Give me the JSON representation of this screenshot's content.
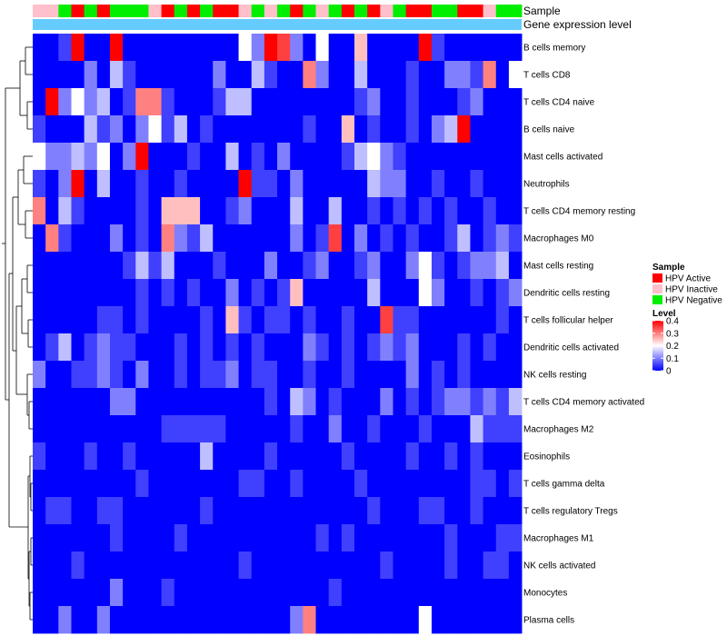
{
  "chart_data": {
    "type": "heatmap",
    "annotation_labels": {
      "top": "Sample",
      "bottom": "Gene expression level"
    },
    "rows": [
      "B cells memory",
      "T cells CD8",
      "T cells CD4 naive",
      "B cells naive",
      "Mast cells activated",
      "Neutrophils",
      "T cells CD4 memory resting",
      "Macrophages M0",
      "Mast cells resting",
      "Dendritic cells resting",
      "T cells follicular helper",
      "Dendritic cells activated",
      "NK cells resting",
      "T cells CD4 memory activated",
      "Macrophages M2",
      "Eosinophils",
      "T cells gamma delta",
      "T cells regulatory  Tregs",
      "Macrophages M1",
      "NK cells activated",
      "Monocytes",
      "Plasma cells"
    ],
    "sample_groups": [
      "HPV Inactive",
      "HPV Inactive",
      "HPV Negative",
      "HPV Active",
      "HPV Negative",
      "HPV Active",
      "HPV Negative",
      "HPV Negative",
      "HPV Negative",
      "HPV Inactive",
      "HPV Active",
      "HPV Negative",
      "HPV Active",
      "HPV Negative",
      "HPV Active",
      "HPV Active",
      "HPV Inactive",
      "HPV Negative",
      "HPV Inactive",
      "HPV Negative",
      "HPV Active",
      "HPV Negative",
      "HPV Inactive",
      "HPV Negative",
      "HPV Active",
      "HPV Negative",
      "HPV Active",
      "HPV Inactive",
      "HPV Negative",
      "HPV Active",
      "HPV Active",
      "HPV Negative",
      "HPV Negative",
      "HPV Active",
      "HPV Active",
      "HPV Inactive",
      "HPV Negative",
      "HPV Negative"
    ],
    "values": [
      [
        0.0,
        0.0,
        0.05,
        0.4,
        0.0,
        0.0,
        0.4,
        0.0,
        0.0,
        0.0,
        0.0,
        0.0,
        0.0,
        0.0,
        0.0,
        0.0,
        0.2,
        0.1,
        0.4,
        0.35,
        0.1,
        0.0,
        0.2,
        0.0,
        0.0,
        0.25,
        0.0,
        0.0,
        0.0,
        0.0,
        0.4,
        0.05,
        0.0,
        0.0,
        0.0,
        0.0,
        0.0,
        0.0
      ],
      [
        0.0,
        0.0,
        0.0,
        0.0,
        0.1,
        0.0,
        0.15,
        0.05,
        0.0,
        0.0,
        0.0,
        0.0,
        0.0,
        0.0,
        0.1,
        0.0,
        0.0,
        0.15,
        0.05,
        0.0,
        0.0,
        0.3,
        0.1,
        0.0,
        0.0,
        0.15,
        0.0,
        0.0,
        0.0,
        0.05,
        0.0,
        0.0,
        0.1,
        0.1,
        0.05,
        0.3,
        0.0,
        0.2
      ],
      [
        0.0,
        0.4,
        0.1,
        0.2,
        0.1,
        0.15,
        0.0,
        0.05,
        0.3,
        0.3,
        0.05,
        0.0,
        0.0,
        0.0,
        0.05,
        0.15,
        0.15,
        0.0,
        0.0,
        0.0,
        0.0,
        0.0,
        0.0,
        0.0,
        0.0,
        0.05,
        0.1,
        0.0,
        0.0,
        0.05,
        0.0,
        0.0,
        0.0,
        0.05,
        0.1,
        0.0,
        0.0,
        0.0
      ],
      [
        0.05,
        0.0,
        0.0,
        0.0,
        0.15,
        0.05,
        0.1,
        0.0,
        0.1,
        0.2,
        0.05,
        0.15,
        0.0,
        0.05,
        0.0,
        0.0,
        0.0,
        0.0,
        0.0,
        0.0,
        0.0,
        0.05,
        0.0,
        0.0,
        0.25,
        0.0,
        0.05,
        0.0,
        0.0,
        0.05,
        0.0,
        0.1,
        0.15,
        0.4,
        0.0,
        0.0,
        0.0,
        0.0
      ],
      [
        0.2,
        0.1,
        0.1,
        0.15,
        0.1,
        0.2,
        0.0,
        0.1,
        0.4,
        0.0,
        0.0,
        0.0,
        0.05,
        0.0,
        0.0,
        0.15,
        0.0,
        0.05,
        0.0,
        0.1,
        0.0,
        0.0,
        0.0,
        0.0,
        0.05,
        0.15,
        0.2,
        0.1,
        0.05,
        0.0,
        0.0,
        0.0,
        0.0,
        0.0,
        0.0,
        0.0,
        0.0,
        0.0
      ],
      [
        0.05,
        0.0,
        0.1,
        0.4,
        0.0,
        0.15,
        0.0,
        0.0,
        0.05,
        0.0,
        0.0,
        0.05,
        0.0,
        0.0,
        0.0,
        0.0,
        0.4,
        0.05,
        0.05,
        0.0,
        0.1,
        0.0,
        0.0,
        0.0,
        0.0,
        0.0,
        0.15,
        0.1,
        0.1,
        0.0,
        0.0,
        0.05,
        0.0,
        0.0,
        0.05,
        0.0,
        0.0,
        0.0
      ],
      [
        0.3,
        0.0,
        0.15,
        0.05,
        0.0,
        0.0,
        0.0,
        0.0,
        0.05,
        0.0,
        0.25,
        0.25,
        0.25,
        0.0,
        0.0,
        0.05,
        0.1,
        0.0,
        0.0,
        0.0,
        0.15,
        0.0,
        0.0,
        0.15,
        0.0,
        0.0,
        0.05,
        0.0,
        0.05,
        0.0,
        0.05,
        0.0,
        0.05,
        0.0,
        0.0,
        0.05,
        0.0,
        0.0
      ],
      [
        0.0,
        0.3,
        0.05,
        0.0,
        0.0,
        0.0,
        0.1,
        0.0,
        0.05,
        0.0,
        0.3,
        0.1,
        0.05,
        0.15,
        0.0,
        0.0,
        0.0,
        0.0,
        0.0,
        0.0,
        0.1,
        0.0,
        0.05,
        0.35,
        0.0,
        0.1,
        0.0,
        0.05,
        0.0,
        0.05,
        0.0,
        0.0,
        0.05,
        0.15,
        0.0,
        0.05,
        0.1,
        0.05
      ],
      [
        0.0,
        0.0,
        0.0,
        0.0,
        0.0,
        0.0,
        0.0,
        0.05,
        0.15,
        0.05,
        0.15,
        0.0,
        0.0,
        0.0,
        0.05,
        0.0,
        0.0,
        0.0,
        0.1,
        0.0,
        0.0,
        0.05,
        0.1,
        0.0,
        0.0,
        0.05,
        0.1,
        0.0,
        0.0,
        0.1,
        0.2,
        0.05,
        0.0,
        0.05,
        0.1,
        0.1,
        0.15,
        0.0
      ],
      [
        0.0,
        0.0,
        0.0,
        0.0,
        0.0,
        0.0,
        0.0,
        0.0,
        0.05,
        0.0,
        0.05,
        0.0,
        0.05,
        0.0,
        0.0,
        0.1,
        0.0,
        0.05,
        0.0,
        0.05,
        0.25,
        0.0,
        0.0,
        0.0,
        0.0,
        0.0,
        0.15,
        0.0,
        0.0,
        0.0,
        0.2,
        0.1,
        0.0,
        0.0,
        0.05,
        0.0,
        0.05,
        0.1
      ],
      [
        0.0,
        0.0,
        0.0,
        0.0,
        0.0,
        0.05,
        0.05,
        0.0,
        0.05,
        0.0,
        0.0,
        0.0,
        0.0,
        0.05,
        0.0,
        0.25,
        0.05,
        0.0,
        0.05,
        0.05,
        0.0,
        0.05,
        0.0,
        0.0,
        0.05,
        0.0,
        0.0,
        0.35,
        0.05,
        0.05,
        0.0,
        0.0,
        0.0,
        0.0,
        0.0,
        0.0,
        0.05,
        0.0
      ],
      [
        0.0,
        0.05,
        0.15,
        0.0,
        0.05,
        0.1,
        0.05,
        0.05,
        0.0,
        0.0,
        0.0,
        0.05,
        0.0,
        0.05,
        0.0,
        0.05,
        0.0,
        0.05,
        0.0,
        0.0,
        0.0,
        0.1,
        0.05,
        0.0,
        0.05,
        0.0,
        0.05,
        0.1,
        0.05,
        0.1,
        0.0,
        0.0,
        0.0,
        0.05,
        0.0,
        0.05,
        0.0,
        0.0
      ],
      [
        0.1,
        0.0,
        0.0,
        0.05,
        0.05,
        0.1,
        0.05,
        0.0,
        0.1,
        0.0,
        0.0,
        0.05,
        0.0,
        0.05,
        0.05,
        0.1,
        0.0,
        0.05,
        0.05,
        0.0,
        0.0,
        0.05,
        0.0,
        0.0,
        0.05,
        0.0,
        0.0,
        0.0,
        0.0,
        0.1,
        0.0,
        0.05,
        0.0,
        0.05,
        0.0,
        0.0,
        0.0,
        0.0
      ],
      [
        0.0,
        0.0,
        0.0,
        0.0,
        0.0,
        0.0,
        0.1,
        0.1,
        0.0,
        0.0,
        0.0,
        0.0,
        0.0,
        0.0,
        0.0,
        0.0,
        0.0,
        0.0,
        0.05,
        0.0,
        0.15,
        0.1,
        0.0,
        0.05,
        0.0,
        0.0,
        0.0,
        0.1,
        0.0,
        0.05,
        0.0,
        0.05,
        0.1,
        0.1,
        0.05,
        0.1,
        0.05,
        0.15
      ],
      [
        0.0,
        0.0,
        0.0,
        0.0,
        0.0,
        0.0,
        0.0,
        0.0,
        0.0,
        0.0,
        0.05,
        0.05,
        0.05,
        0.05,
        0.05,
        0.0,
        0.0,
        0.0,
        0.0,
        0.0,
        0.05,
        0.0,
        0.0,
        0.1,
        0.0,
        0.0,
        0.05,
        0.0,
        0.0,
        0.0,
        0.05,
        0.0,
        0.0,
        0.0,
        0.15,
        0.05,
        0.05,
        0.05
      ],
      [
        0.05,
        0.0,
        0.0,
        0.0,
        0.05,
        0.0,
        0.0,
        0.05,
        0.0,
        0.0,
        0.0,
        0.0,
        0.0,
        0.15,
        0.0,
        0.0,
        0.0,
        0.0,
        0.05,
        0.0,
        0.0,
        0.0,
        0.0,
        0.0,
        0.05,
        0.0,
        0.0,
        0.0,
        0.0,
        0.05,
        0.0,
        0.0,
        0.05,
        0.0,
        0.05,
        0.0,
        0.0,
        0.0
      ],
      [
        0.0,
        0.0,
        0.0,
        0.0,
        0.0,
        0.0,
        0.0,
        0.0,
        0.05,
        0.0,
        0.0,
        0.0,
        0.0,
        0.0,
        0.0,
        0.0,
        0.05,
        0.05,
        0.0,
        0.0,
        0.05,
        0.0,
        0.0,
        0.0,
        0.0,
        0.05,
        0.0,
        0.0,
        0.0,
        0.0,
        0.0,
        0.0,
        0.0,
        0.0,
        0.05,
        0.05,
        0.0,
        0.05
      ],
      [
        0.0,
        0.05,
        0.05,
        0.0,
        0.0,
        0.05,
        0.05,
        0.0,
        0.0,
        0.0,
        0.0,
        0.0,
        0.0,
        0.05,
        0.0,
        0.0,
        0.0,
        0.0,
        0.0,
        0.0,
        0.0,
        0.0,
        0.0,
        0.0,
        0.0,
        0.0,
        0.05,
        0.0,
        0.0,
        0.0,
        0.05,
        0.05,
        0.0,
        0.0,
        0.05,
        0.0,
        0.0,
        0.0
      ],
      [
        0.0,
        0.0,
        0.0,
        0.0,
        0.0,
        0.0,
        0.05,
        0.0,
        0.0,
        0.0,
        0.0,
        0.05,
        0.0,
        0.0,
        0.0,
        0.0,
        0.0,
        0.0,
        0.0,
        0.0,
        0.0,
        0.0,
        0.05,
        0.0,
        0.05,
        0.0,
        0.0,
        0.0,
        0.0,
        0.0,
        0.0,
        0.0,
        0.05,
        0.0,
        0.0,
        0.0,
        0.05,
        0.05
      ],
      [
        0.0,
        0.0,
        0.0,
        0.05,
        0.0,
        0.0,
        0.0,
        0.0,
        0.0,
        0.0,
        0.0,
        0.0,
        0.0,
        0.0,
        0.0,
        0.0,
        0.05,
        0.0,
        0.0,
        0.0,
        0.0,
        0.0,
        0.0,
        0.0,
        0.0,
        0.0,
        0.0,
        0.05,
        0.0,
        0.0,
        0.0,
        0.0,
        0.05,
        0.0,
        0.0,
        0.05,
        0.05,
        0.0
      ],
      [
        0.0,
        0.0,
        0.0,
        0.0,
        0.0,
        0.0,
        0.1,
        0.0,
        0.0,
        0.0,
        0.05,
        0.0,
        0.0,
        0.0,
        0.0,
        0.0,
        0.0,
        0.0,
        0.0,
        0.0,
        0.0,
        0.0,
        0.0,
        0.05,
        0.0,
        0.0,
        0.0,
        0.0,
        0.0,
        0.0,
        0.0,
        0.0,
        0.0,
        0.0,
        0.0,
        0.0,
        0.0,
        0.0
      ],
      [
        0.0,
        0.0,
        0.1,
        0.0,
        0.0,
        0.1,
        0.0,
        0.0,
        0.0,
        0.0,
        0.0,
        0.0,
        0.0,
        0.0,
        0.0,
        0.0,
        0.0,
        0.0,
        0.0,
        0.0,
        0.1,
        0.3,
        0.0,
        0.0,
        0.0,
        0.0,
        0.0,
        0.0,
        0.0,
        0.0,
        0.2,
        0.0,
        0.0,
        0.0,
        0.0,
        0.0,
        0.0,
        0.0
      ]
    ],
    "legend": {
      "sample": {
        "title": "Sample",
        "items": [
          {
            "label": "HPV Active",
            "color": "#ff0000"
          },
          {
            "label": "HPV Inactive",
            "color": "#ffc0cb"
          },
          {
            "label": "HPV Negative",
            "color": "#00ee00"
          }
        ]
      },
      "level": {
        "title": "Level",
        "ticks": [
          {
            "value": 0.4,
            "label": "0.4"
          },
          {
            "value": 0.3,
            "label": "0.3"
          },
          {
            "value": 0.2,
            "label": "0.2"
          },
          {
            "value": 0.1,
            "label": "0.1"
          },
          {
            "value": 0,
            "label": "0"
          }
        ],
        "range": [
          0,
          0.4
        ]
      }
    },
    "color_scale": {
      "low": "#0000ff",
      "mid": "#ffffff",
      "high": "#ff0000"
    },
    "expression_bar_color": "#66ccff"
  }
}
